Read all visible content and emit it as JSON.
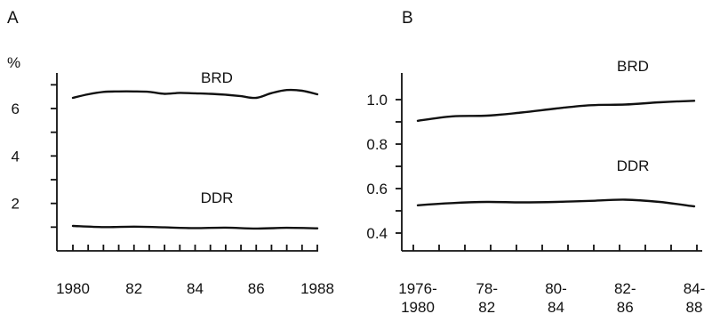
{
  "chart_data": [
    {
      "panel": "A",
      "type": "line",
      "y_unit": "%",
      "ylim": [
        0,
        7.5
      ],
      "yticks": [
        2,
        4,
        6
      ],
      "ytick_labels": [
        "2",
        "4",
        "6"
      ],
      "xlim": [
        1980,
        1988
      ],
      "xticks": [
        1980,
        1982,
        1984,
        1986,
        1988
      ],
      "xtick_labels": [
        "1980",
        "82",
        "84",
        "86",
        "1988"
      ],
      "grid": false,
      "series": [
        {
          "name": "BRD",
          "x": [
            1980,
            1980.5,
            1981,
            1981.5,
            1982,
            1982.5,
            1983,
            1983.5,
            1984,
            1984.5,
            1985,
            1985.5,
            1986,
            1986.5,
            1987,
            1987.5,
            1988
          ],
          "y": [
            6.45,
            6.6,
            6.7,
            6.72,
            6.72,
            6.7,
            6.62,
            6.66,
            6.64,
            6.62,
            6.58,
            6.52,
            6.45,
            6.65,
            6.78,
            6.75,
            6.6
          ]
        },
        {
          "name": "DDR",
          "x": [
            1980,
            1981,
            1982,
            1983,
            1984,
            1985,
            1986,
            1987,
            1988
          ],
          "y": [
            1.05,
            1.0,
            1.02,
            0.99,
            0.96,
            0.98,
            0.94,
            0.97,
            0.95
          ]
        }
      ]
    },
    {
      "panel": "B",
      "type": "line",
      "ylim": [
        0.32,
        1.12
      ],
      "yticks": [
        0.4,
        0.6,
        0.8,
        1.0
      ],
      "ytick_labels": [
        "0.4",
        "0.6",
        "0.8",
        "1.0"
      ],
      "xticks": [
        0,
        1,
        2,
        3,
        4
      ],
      "xtick_labels": [
        [
          "1976-",
          "1980"
        ],
        [
          "78-",
          "82"
        ],
        [
          "80-",
          "84"
        ],
        [
          "82-",
          "86"
        ],
        [
          "84-",
          "88"
        ]
      ],
      "grid": false,
      "series": [
        {
          "name": "BRD",
          "x": [
            0,
            0.5,
            1,
            1.5,
            2,
            2.5,
            3,
            3.5,
            4
          ],
          "y": [
            0.905,
            0.925,
            0.928,
            0.942,
            0.96,
            0.975,
            0.978,
            0.988,
            0.995
          ]
        },
        {
          "name": "DDR",
          "x": [
            0,
            0.5,
            1,
            1.5,
            2,
            2.5,
            3,
            3.5,
            4
          ],
          "y": [
            0.525,
            0.535,
            0.54,
            0.538,
            0.54,
            0.545,
            0.55,
            0.54,
            0.52
          ]
        }
      ]
    }
  ]
}
